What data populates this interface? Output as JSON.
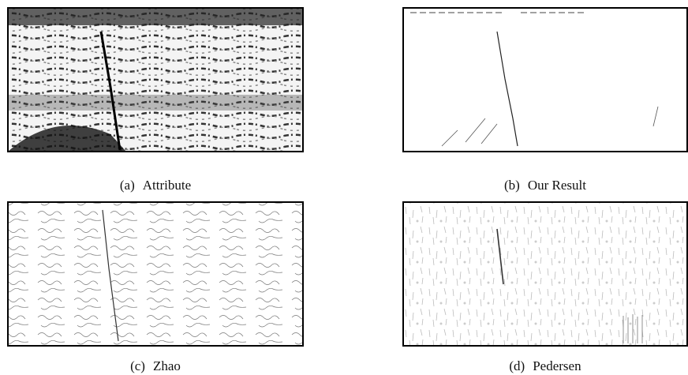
{
  "panels": [
    {
      "label": "(a)",
      "caption": "Attribute"
    },
    {
      "label": "(b)",
      "caption": "Our Result"
    },
    {
      "label": "(c)",
      "caption": "Zhao"
    },
    {
      "label": "(d)",
      "caption": "Pedersen"
    }
  ]
}
